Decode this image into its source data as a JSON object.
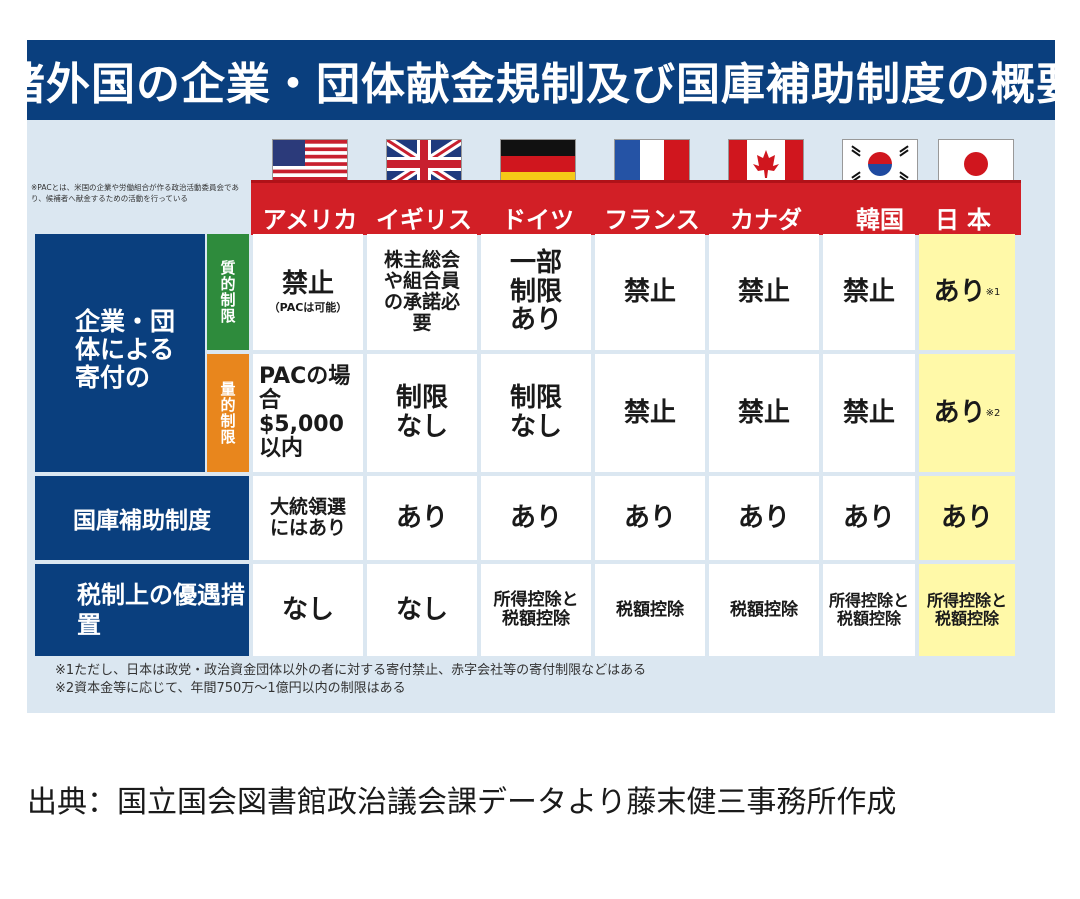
{
  "title": "諸外国の企業・団体献金規制及び国庫補助制度の概要",
  "pac_note": "※PACとは、米国の企業や労働組合が作る政治活動委員会であり、候補者へ献金するための活動を行っている",
  "countries": [
    "アメリカ",
    "イギリス",
    "ドイツ",
    "フランス",
    "カナダ",
    "韓国",
    "日本"
  ],
  "rows": {
    "donation_header": "企業・団体による寄付の",
    "qualitative_tag": "質的制限",
    "quantitative_tag": "量的制限",
    "subsidy_header": "国庫補助制度",
    "tax_header": "税制上の優遇措置"
  },
  "qualitative": {
    "us_main": "禁止",
    "us_sub": "（PACは可能）",
    "uk": "株主総会や組合員の承諾必要",
    "de": "一部制限あり",
    "fr": "禁止",
    "ca": "禁止",
    "kr": "禁止",
    "jp": "あり",
    "jp_note": "※1"
  },
  "quantitative": {
    "us": "PACの場合$5,000以内",
    "uk": "制限なし",
    "de": "制限なし",
    "fr": "禁止",
    "ca": "禁止",
    "kr": "禁止",
    "jp": "あり",
    "jp_note": "※2"
  },
  "subsidy": {
    "us": "大統領選にはあり",
    "uk": "あり",
    "de": "あり",
    "fr": "あり",
    "ca": "あり",
    "kr": "あり",
    "jp": "あり"
  },
  "tax": {
    "us": "なし",
    "uk": "なし",
    "de": "所得控除と税額控除",
    "fr": "税額控除",
    "ca": "税額控除",
    "kr": "所得控除と税額控除",
    "jp": "所得控除と税額控除"
  },
  "footnotes": [
    "※1ただし、日本は政党・政治資金団体以外の者に対する寄付禁止、赤字会社等の寄付制限などはある",
    "※2資本金等に応じて、年間750万～1億円以内の制限はある"
  ],
  "caption": "出典：国立国会図書館政治議会課データより藤末健三事務所作成",
  "colors": {
    "navy": "#0a3f7e",
    "red": "#d21f26",
    "green": "#2e8b3c",
    "orange": "#e8861d",
    "japan_yellow": "#fff9a8",
    "panel": "#dbe7f1"
  }
}
